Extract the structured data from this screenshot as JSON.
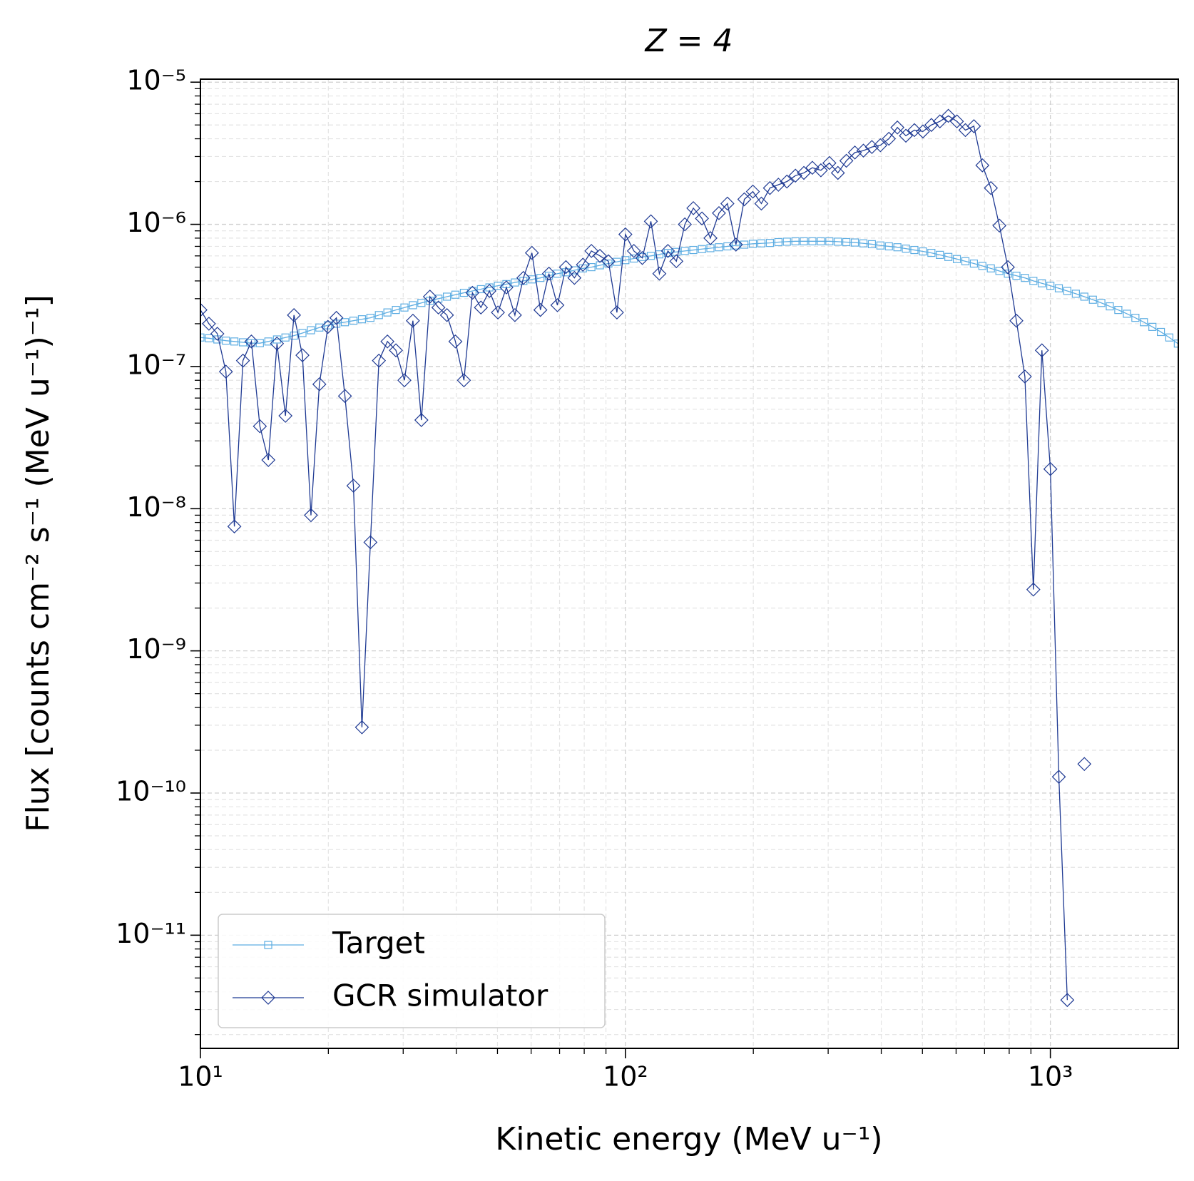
{
  "chart_data": {
    "type": "line",
    "title": "Z = 4",
    "xlabel": "Kinetic energy (MeV u⁻¹)",
    "ylabel": "Flux [counts cm⁻² s⁻¹ (MeV u⁻¹)⁻¹]",
    "xscale": "log",
    "yscale": "log",
    "grid": true,
    "legend": "lower left",
    "xlim": [
      10,
      2000
    ],
    "ylim": [
      1.6e-12,
      1.05e-05
    ],
    "xticks": [
      {
        "value": 10,
        "label": "10¹"
      },
      {
        "value": 100,
        "label": "10²"
      },
      {
        "value": 1000,
        "label": "10³"
      }
    ],
    "yticks": [
      {
        "value": 1e-11,
        "label": "10⁻¹¹"
      },
      {
        "value": 1e-10,
        "label": "10⁻¹⁰"
      },
      {
        "value": 1e-09,
        "label": "10⁻⁹"
      },
      {
        "value": 1e-08,
        "label": "10⁻⁸"
      },
      {
        "value": 1e-07,
        "label": "10⁻⁷"
      },
      {
        "value": 1e-06,
        "label": "10⁻⁶"
      },
      {
        "value": 1e-05,
        "label": "10⁻⁵"
      }
    ],
    "x": [
      10,
      10.47,
      10.96,
      11.48,
      12.02,
      12.59,
      13.18,
      13.8,
      14.45,
      15.14,
      15.85,
      16.6,
      17.38,
      18.2,
      19.05,
      19.95,
      20.89,
      21.88,
      22.91,
      23.99,
      25.12,
      26.3,
      27.54,
      28.84,
      30.2,
      31.62,
      33.11,
      34.67,
      36.31,
      38.02,
      39.81,
      41.69,
      43.65,
      45.71,
      47.86,
      50.12,
      52.48,
      54.95,
      57.54,
      60.26,
      63.1,
      66.07,
      69.18,
      72.44,
      75.86,
      79.43,
      83.18,
      87.1,
      91.2,
      95.5,
      100,
      104.7,
      109.6,
      114.8,
      120.2,
      125.9,
      131.8,
      138,
      144.5,
      151.4,
      158.5,
      166,
      173.8,
      182,
      190.5,
      199.5,
      208.9,
      218.8,
      229.1,
      239.9,
      251.2,
      263,
      275.4,
      288.4,
      302,
      316.2,
      331.1,
      346.7,
      363.1,
      380.2,
      398.1,
      416.9,
      436.5,
      457.1,
      478.6,
      501.2,
      524.8,
      549.5,
      575.4,
      602.6,
      631,
      660.7,
      691.8,
      724.4,
      758.6,
      794.3,
      831.8,
      871,
      912,
      955,
      1000,
      1047,
      1096,
      1148,
      1202,
      1259,
      1318,
      1380,
      1445,
      1514,
      1585,
      1660,
      1738,
      1820,
      1905,
      1995
    ],
    "series": [
      {
        "name": "Target",
        "color": "#5dade2",
        "marker": "square",
        "values": [
          1.6e-07,
          1.58e-07,
          1.55e-07,
          1.52e-07,
          1.5e-07,
          1.48e-07,
          1.46e-07,
          1.46e-07,
          1.5e-07,
          1.55e-07,
          1.6e-07,
          1.65e-07,
          1.72e-07,
          1.8e-07,
          1.88e-07,
          1.95e-07,
          2e-07,
          2.05e-07,
          2.1e-07,
          2.15e-07,
          2.2e-07,
          2.3e-07,
          2.4e-07,
          2.5e-07,
          2.6e-07,
          2.7e-07,
          2.8e-07,
          2.9e-07,
          3e-07,
          3.1e-07,
          3.2e-07,
          3.3e-07,
          3.4e-07,
          3.5e-07,
          3.6e-07,
          3.7e-07,
          3.8e-07,
          3.9e-07,
          4e-07,
          4.1e-07,
          4.2e-07,
          4.35e-07,
          4.5e-07,
          4.6e-07,
          4.75e-07,
          4.9e-07,
          5e-07,
          5.15e-07,
          5.3e-07,
          5.45e-07,
          5.6e-07,
          5.75e-07,
          5.9e-07,
          6e-07,
          6.15e-07,
          6.3e-07,
          6.4e-07,
          6.5e-07,
          6.6e-07,
          6.7e-07,
          6.8e-07,
          6.9e-07,
          7e-07,
          7.1e-07,
          7.2e-07,
          7.3e-07,
          7.35e-07,
          7.4e-07,
          7.5e-07,
          7.55e-07,
          7.6e-07,
          7.6e-07,
          7.6e-07,
          7.6e-07,
          7.6e-07,
          7.55e-07,
          7.5e-07,
          7.45e-07,
          7.35e-07,
          7.25e-07,
          7.1e-07,
          7e-07,
          6.9e-07,
          6.75e-07,
          6.6e-07,
          6.45e-07,
          6.3e-07,
          6.1e-07,
          5.9e-07,
          5.7e-07,
          5.5e-07,
          5.3e-07,
          5.1e-07,
          4.9e-07,
          4.7e-07,
          4.5e-07,
          4.35e-07,
          4.2e-07,
          4e-07,
          3.85e-07,
          3.7e-07,
          3.55e-07,
          3.4e-07,
          3.25e-07,
          3.1e-07,
          2.95e-07,
          2.8e-07,
          2.65e-07,
          2.5e-07,
          2.35e-07,
          2.2e-07,
          2.05e-07,
          1.9e-07,
          1.75e-07,
          1.6e-07,
          1.45e-07
        ]
      },
      {
        "name": "GCR simulator",
        "color": "#1f3a93",
        "marker": "diamond",
        "values": [
          2.5e-07,
          2e-07,
          1.7e-07,
          9.2e-08,
          7.5e-09,
          1.1e-07,
          1.5e-07,
          3.8e-08,
          2.2e-08,
          1.45e-07,
          4.5e-08,
          2.3e-07,
          1.2e-07,
          9e-09,
          7.5e-08,
          1.9e-07,
          2.2e-07,
          6.2e-08,
          1.45e-08,
          2.9e-10,
          5.8e-09,
          1.1e-07,
          1.5e-07,
          1.3e-07,
          8e-08,
          2.1e-07,
          4.2e-08,
          3.1e-07,
          2.6e-07,
          2.3e-07,
          1.5e-07,
          8e-08,
          3.3e-07,
          2.6e-07,
          3.4e-07,
          2.4e-07,
          3.6e-07,
          2.3e-07,
          4.2e-07,
          6.3e-07,
          2.5e-07,
          4.5e-07,
          2.7e-07,
          5e-07,
          4.2e-07,
          5.2e-07,
          6.5e-07,
          6e-07,
          5.5e-07,
          2.4e-07,
          8.5e-07,
          6.5e-07,
          5.8e-07,
          1.05e-06,
          4.5e-07,
          6.5e-07,
          5.5e-07,
          1e-06,
          1.3e-06,
          1.1e-06,
          8e-07,
          1.2e-06,
          1.4e-06,
          7.2e-07,
          1.5e-06,
          1.7e-06,
          1.4e-06,
          1.8e-06,
          1.9e-06,
          2e-06,
          2.2e-06,
          2.3e-06,
          2.5e-06,
          2.4e-06,
          2.7e-06,
          2.3e-06,
          2.8e-06,
          3.2e-06,
          3.3e-06,
          3.5e-06,
          3.6e-06,
          4e-06,
          4.8e-06,
          4.2e-06,
          4.6e-06,
          4.5e-06,
          5e-06,
          5.3e-06,
          5.8e-06,
          5.3e-06,
          4.6e-06,
          4.9e-06,
          2.6e-06,
          1.8e-06,
          9.8e-07,
          5e-07,
          2.1e-07,
          8.5e-08,
          2.7e-09,
          1.3e-07,
          1.9e-08,
          1.3e-10,
          3.5e-12,
          null,
          1.6e-10,
          null,
          null,
          null,
          null,
          null,
          null,
          null,
          null,
          null,
          null,
          null
        ]
      }
    ]
  }
}
